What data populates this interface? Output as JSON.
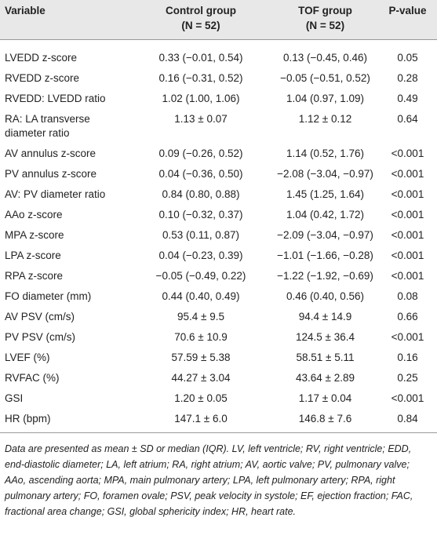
{
  "table": {
    "header": [
      "Variable",
      "Control group",
      "TOF group",
      "P-value"
    ],
    "subheader": [
      "(N = 52)",
      "(N = 52)"
    ],
    "rows": [
      [
        "LVEDD z-score",
        "0.33 (−0.01, 0.54)",
        "0.13 (−0.45, 0.46)",
        "0.05"
      ],
      [
        "RVEDD z-score",
        "0.16 (−0.31, 0.52)",
        "−0.05 (−0.51, 0.52)",
        "0.28"
      ],
      [
        "RVEDD: LVEDD ratio",
        "1.02 (1.00, 1.06)",
        "1.04 (0.97, 1.09)",
        "0.49"
      ],
      [
        "RA: LA transverse diameter ratio",
        "1.13 ± 0.07",
        "1.12 ± 0.12",
        "0.64"
      ],
      [
        "AV annulus z-score",
        "0.09 (−0.26, 0.52)",
        "1.14 (0.52, 1.76)",
        "<0.001"
      ],
      [
        "PV annulus z-score",
        "0.04 (−0.36, 0.50)",
        "−2.08 (−3.04, −0.97)",
        "<0.001"
      ],
      [
        "AV: PV diameter ratio",
        "0.84 (0.80, 0.88)",
        "1.45 (1.25, 1.64)",
        "<0.001"
      ],
      [
        "AAo z-score",
        "0.10 (−0.32, 0.37)",
        "1.04 (0.42, 1.72)",
        "<0.001"
      ],
      [
        "MPA z-score",
        "0.53 (0.11, 0.87)",
        "−2.09 (−3.04, −0.97)",
        "<0.001"
      ],
      [
        "LPA z-score",
        "0.04 (−0.23, 0.39)",
        "−1.01 (−1.66, −0.28)",
        "<0.001"
      ],
      [
        "RPA z-score",
        "−0.05 (−0.49, 0.22)",
        "−1.22 (−1.92, −0.69)",
        "<0.001"
      ],
      [
        "FO diameter (mm)",
        "0.44 (0.40, 0.49)",
        "0.46 (0.40, 0.56)",
        "0.08"
      ],
      [
        "AV PSV (cm/s)",
        "95.4 ± 9.5",
        "94.4 ± 14.9",
        "0.66"
      ],
      [
        "PV PSV (cm/s)",
        "70.6 ± 10.9",
        "124.5 ± 36.4",
        "<0.001"
      ],
      [
        "LVEF (%)",
        "57.59 ± 5.38",
        "58.51 ± 5.11",
        "0.16"
      ],
      [
        "RVFAC (%)",
        "44.27 ± 3.04",
        "43.64 ± 2.89",
        "0.25"
      ],
      [
        "GSI",
        "1.20 ± 0.05",
        "1.17 ± 0.04",
        "<0.001"
      ],
      [
        "HR (bpm)",
        "147.1 ± 6.0",
        "146.8 ± 7.6",
        "0.84"
      ]
    ]
  },
  "footnote": "Data are presented as mean ± SD or median (IQR). LV, left ventricle; RV, right ventricle; EDD, end-diastolic diameter; LA, left atrium; RA, right atrium; AV, aortic valve; PV, pulmonary valve; AAo, ascending aorta; MPA, main pulmonary artery; LPA, left pulmonary artery; RPA, right pulmonary artery; FO, foramen ovale; PSV, peak velocity in systole; EF, ejection fraction; FAC, fractional area change; GSI, global sphericity index; HR, heart rate."
}
